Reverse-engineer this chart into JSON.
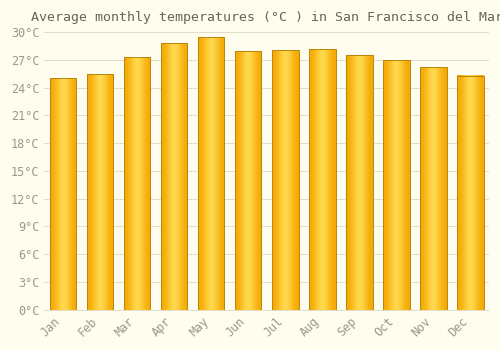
{
  "title": "Average monthly temperatures (°C ) in San Francisco del Mar",
  "months": [
    "Jan",
    "Feb",
    "Mar",
    "Apr",
    "May",
    "Jun",
    "Jul",
    "Aug",
    "Sep",
    "Oct",
    "Nov",
    "Dec"
  ],
  "values": [
    25.0,
    25.5,
    27.3,
    28.8,
    29.5,
    28.0,
    28.1,
    28.2,
    27.5,
    27.0,
    26.2,
    25.3
  ],
  "bar_color_center": "#FFD84D",
  "bar_color_edge": "#F5A800",
  "bar_border_color": "#B8860B",
  "background_color": "#FEFDF0",
  "grid_color": "#E0DEC8",
  "text_color": "#999988",
  "title_color": "#666655",
  "ylim": [
    0,
    30
  ],
  "yticks": [
    0,
    3,
    6,
    9,
    12,
    15,
    18,
    21,
    24,
    27,
    30
  ],
  "ytick_labels": [
    "0°C",
    "3°C",
    "6°C",
    "9°C",
    "12°C",
    "15°C",
    "18°C",
    "21°C",
    "24°C",
    "27°C",
    "30°C"
  ],
  "font_family": "monospace",
  "title_fontsize": 9.5,
  "tick_fontsize": 8.5,
  "bar_width": 0.72
}
